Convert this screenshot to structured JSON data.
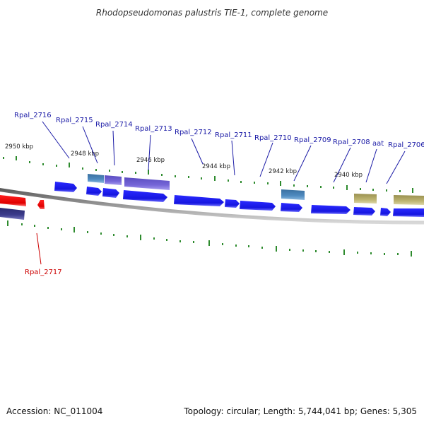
{
  "title": "Rhodopseudomonas palustris TIE-1, complete genome",
  "footer": {
    "accession": "Accession: NC_011004",
    "summary": "Topology: circular; Length: 5,744,041 bp; Genes: 5,305"
  },
  "colors": {
    "background": "#ffffff",
    "backbone": "#7a7a7a",
    "ticks": "#2e8b2e",
    "label_blue": "#1a1aa6",
    "label_red": "#cc0000",
    "cds": "#1f1ff0",
    "rna": "#ff1a1a",
    "feature_steelblue": "#4a86b8",
    "feature_purple": "#7060d0",
    "feature_navy": "#3a3a88",
    "feature_khaki": "#b8b06a"
  },
  "ticks": {
    "labels": [
      "2950 kbp",
      "2948 kbp",
      "2946 kbp",
      "2944 kbp",
      "2942 kbp",
      "2940 kbp"
    ]
  },
  "gene_labels": [
    {
      "text": "Rpal_2716",
      "color": "blue"
    },
    {
      "text": "Rpal_2715",
      "color": "blue"
    },
    {
      "text": "Rpal_2714",
      "color": "blue"
    },
    {
      "text": "Rpal_2713",
      "color": "blue"
    },
    {
      "text": "Rpal_2712",
      "color": "blue"
    },
    {
      "text": "Rpal_2711",
      "color": "blue"
    },
    {
      "text": "Rpal_2710",
      "color": "blue"
    },
    {
      "text": "Rpal_2709",
      "color": "blue"
    },
    {
      "text": "Rpal_2708",
      "color": "blue"
    },
    {
      "text": "aat",
      "color": "blue"
    },
    {
      "text": "Rpal_2706",
      "color": "blue"
    },
    {
      "text": "Rpal_2717",
      "color": "red"
    }
  ]
}
